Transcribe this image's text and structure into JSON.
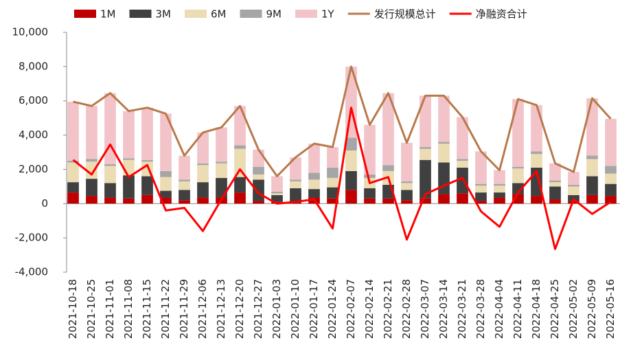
{
  "chart_data": {
    "type": "bar",
    "stacked": true,
    "categories": [
      "2021-10-18",
      "2021-10-25",
      "2021-11-01",
      "2021-11-08",
      "2021-11-15",
      "2021-11-22",
      "2021-11-29",
      "2021-12-06",
      "2021-12-13",
      "2021-12-20",
      "2021-12-27",
      "2022-01-03",
      "2022-01-10",
      "2022-01-17",
      "2022-01-24",
      "2022-02-07",
      "2022-02-14",
      "2022-02-21",
      "2022-02-28",
      "2022-03-07",
      "2022-03-14",
      "2022-03-21",
      "2022-03-28",
      "2022-04-04",
      "2022-04-11",
      "2022-04-18",
      "2022-04-25",
      "2022-05-02",
      "2022-05-09",
      "2022-05-16"
    ],
    "series": [
      {
        "name": "1M",
        "type": "bar",
        "color": "#c00000",
        "values": [
          650,
          450,
          350,
          300,
          500,
          350,
          200,
          350,
          350,
          650,
          150,
          100,
          150,
          350,
          300,
          800,
          300,
          300,
          200,
          300,
          550,
          600,
          150,
          350,
          550,
          450,
          250,
          150,
          500,
          450
        ]
      },
      {
        "name": "3M",
        "type": "bar",
        "color": "#404040",
        "values": [
          600,
          1000,
          850,
          1350,
          1100,
          400,
          600,
          900,
          1150,
          900,
          1250,
          400,
          750,
          500,
          650,
          1100,
          600,
          800,
          600,
          2250,
          1850,
          1500,
          500,
          300,
          650,
          1650,
          750,
          350,
          1100,
          700
        ]
      },
      {
        "name": "6M",
        "type": "bar",
        "color": "#ecdcb4",
        "values": [
          1150,
          1000,
          1000,
          900,
          850,
          800,
          500,
          1000,
          850,
          1650,
          300,
          100,
          400,
          550,
          550,
          1200,
          600,
          800,
          400,
          650,
          1100,
          400,
          400,
          400,
          850,
          800,
          250,
          500,
          1000,
          600
        ]
      },
      {
        "name": "9M",
        "type": "bar",
        "color": "#a6a6a6",
        "values": [
          100,
          150,
          100,
          100,
          100,
          350,
          100,
          100,
          100,
          200,
          450,
          100,
          100,
          400,
          600,
          750,
          200,
          350,
          100,
          100,
          100,
          100,
          100,
          100,
          100,
          150,
          100,
          100,
          200,
          450
        ]
      },
      {
        "name": "1Y",
        "type": "bar",
        "color": "#f2c4ca",
        "values": [
          3450,
          3100,
          4150,
          2750,
          3050,
          3350,
          1400,
          1800,
          2000,
          2300,
          1000,
          900,
          1300,
          1700,
          1200,
          4150,
          2900,
          4200,
          2250,
          3000,
          2700,
          2450,
          1900,
          800,
          3950,
          2700,
          1000,
          750,
          3350,
          2750
        ]
      },
      {
        "name": "发行规模总计",
        "type": "line",
        "color": "#b8794a",
        "values": [
          5950,
          5700,
          6450,
          5400,
          5600,
          5250,
          2800,
          4150,
          4450,
          5700,
          3150,
          1600,
          2700,
          3500,
          3300,
          8000,
          4600,
          6450,
          3550,
          6300,
          6300,
          5050,
          3050,
          1950,
          6100,
          5750,
          2350,
          1850,
          6150,
          4950
        ]
      },
      {
        "name": "净融资合计",
        "type": "line",
        "color": "#ff0000",
        "values": [
          2550,
          1700,
          3450,
          1550,
          2250,
          -400,
          -250,
          -1600,
          250,
          2000,
          600,
          0,
          100,
          250,
          -1450,
          5600,
          1200,
          1550,
          -2100,
          550,
          1050,
          1500,
          -450,
          -1350,
          650,
          1900,
          -2650,
          250,
          -600,
          100
        ]
      }
    ],
    "ylim": [
      -4000,
      10000
    ],
    "yticks": [
      {
        "value": -4000,
        "label": "-4,000"
      },
      {
        "value": -2000,
        "label": "-2,000"
      },
      0,
      {
        "value": 2000,
        "label": "2,000"
      },
      {
        "value": 4000,
        "label": "4,000"
      },
      {
        "value": 6000,
        "label": "6,000"
      },
      {
        "value": 8000,
        "label": "8,000"
      },
      {
        "value": 10000,
        "label": "10,000"
      }
    ],
    "grid": false
  }
}
